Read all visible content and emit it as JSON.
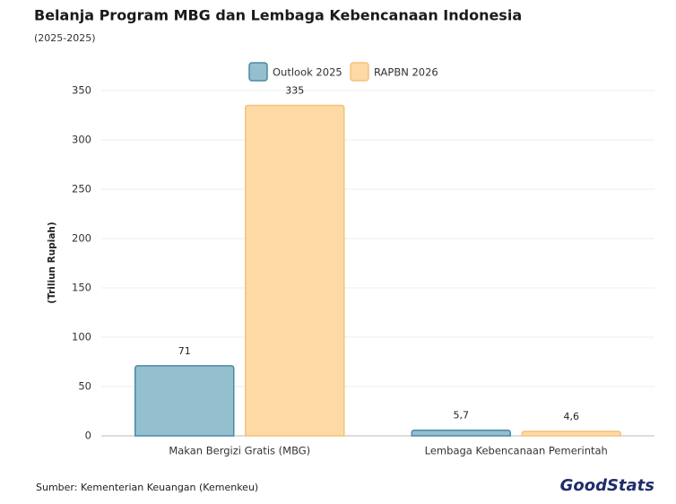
{
  "chart_data": {
    "type": "bar",
    "title": "Belanja Program MBG dan Lembaga Kebencanaan Indonesia",
    "subtitle": "(2025-2025)",
    "y_label": "(Triliun Rupiah)",
    "source": "Sumber: Kementerian Keuangan (Kemenkeu)",
    "brand": "GoodStats",
    "categories": [
      "Makan Bergizi Gratis (MBG)",
      "Lembaga Kebencanaan Pemerintah"
    ],
    "series": [
      {
        "name": "Outlook 2025",
        "color": "#93bfcf",
        "values": [
          71,
          5.7
        ],
        "value_labels": [
          "71",
          "5,7"
        ]
      },
      {
        "name": "RAPBN 2026",
        "color": "#fdd9a5",
        "values": [
          335,
          4.6
        ],
        "value_labels": [
          "335",
          "4,6"
        ]
      }
    ],
    "ylim": [
      0,
      350
    ],
    "yticks": [
      0,
      50,
      100,
      150,
      200,
      250,
      300,
      350
    ],
    "grid": true,
    "legend": "top"
  }
}
